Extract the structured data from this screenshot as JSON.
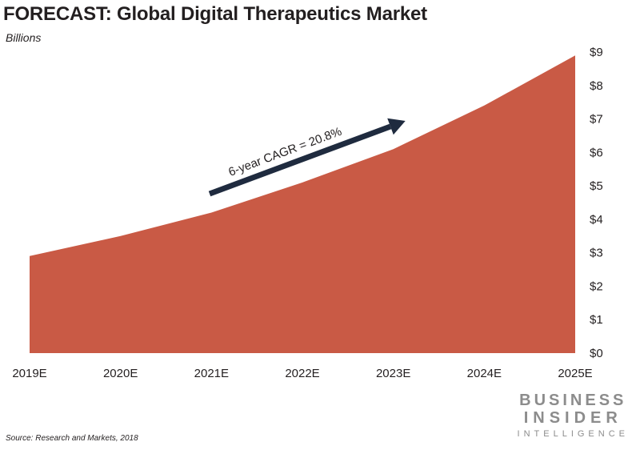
{
  "title": "FORECAST: Global Digital Therapeutics Market",
  "subtitle": "Billions",
  "source": "Source: Research and Markets, 2018",
  "brand": {
    "line1": "BUSINESS",
    "line2": "INSIDER",
    "line3": "INTELLIGENCE"
  },
  "colors": {
    "area": "#c95a45",
    "arrow": "#1f2b3f",
    "text": "#231f20",
    "brand": "#8c8c8c"
  },
  "chart_data": {
    "type": "area",
    "title": "FORECAST: Global Digital Therapeutics Market",
    "ylabel": "Billions",
    "categories": [
      "2019E",
      "2020E",
      "2021E",
      "2022E",
      "2023E",
      "2024E",
      "2025E"
    ],
    "values": [
      2.9,
      3.5,
      4.2,
      5.1,
      6.1,
      7.4,
      8.9
    ],
    "ylim": [
      0,
      9
    ],
    "yticks": [
      "$0",
      "$1",
      "$2",
      "$3",
      "$4",
      "$5",
      "$6",
      "$7",
      "$8",
      "$9"
    ],
    "y_axis_position": "right",
    "grid": false,
    "annotation": {
      "text": "6-year CAGR = 20.8%"
    }
  }
}
